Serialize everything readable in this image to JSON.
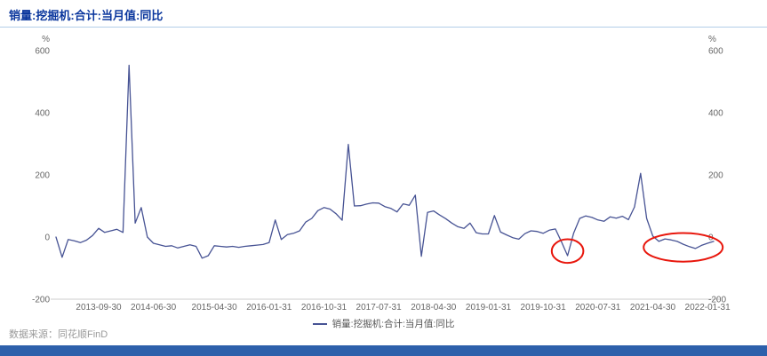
{
  "header": {
    "title": "销量:挖掘机:合计:当月值:同比"
  },
  "legend": {
    "label": "销量:挖掘机:合计:当月值:同比"
  },
  "footer": {
    "source_label": "数据来源：同花顺FinD"
  },
  "colors": {
    "title_text": "#0a369d",
    "divider": "#b3cde8",
    "series_line": "#475394",
    "axis_text": "#666666",
    "axis_line": "#cccccc",
    "annotation": "#e8160c",
    "legend_text": "#555555",
    "source_text": "#999999",
    "bottom_bar": "#2d60ab"
  },
  "chart_data": {
    "type": "line",
    "title": "销量:挖掘机:合计:当月值:同比",
    "y_unit": "%",
    "y_ticks": [
      600,
      400,
      200,
      0,
      -200
    ],
    "ylim": [
      -200,
      650
    ],
    "grid": false,
    "legend_position": "bottom",
    "x_ticks": [
      "2013-09-30",
      "2014-06-30",
      "2015-04-30",
      "2016-01-31",
      "2016-10-31",
      "2017-07-31",
      "2018-04-30",
      "2019-01-31",
      "2019-10-31",
      "2020-07-31",
      "2021-04-30",
      "2022-01-31"
    ],
    "series": [
      {
        "name": "销量:挖掘机:合计:当月值:同比",
        "x": [
          "2013-02",
          "2013-03",
          "2013-04",
          "2013-05",
          "2013-06",
          "2013-07",
          "2013-08",
          "2013-09",
          "2013-10",
          "2013-11",
          "2013-12",
          "2014-01",
          "2014-02",
          "2014-03",
          "2014-04",
          "2014-05",
          "2014-06",
          "2014-07",
          "2014-08",
          "2014-09",
          "2014-10",
          "2014-11",
          "2014-12",
          "2015-01",
          "2015-02",
          "2015-03",
          "2015-04",
          "2015-05",
          "2015-06",
          "2015-07",
          "2015-08",
          "2015-09",
          "2015-10",
          "2015-11",
          "2015-12",
          "2016-01",
          "2016-02",
          "2016-03",
          "2016-04",
          "2016-05",
          "2016-06",
          "2016-07",
          "2016-08",
          "2016-09",
          "2016-10",
          "2016-11",
          "2016-12",
          "2017-01",
          "2017-02",
          "2017-03",
          "2017-04",
          "2017-05",
          "2017-06",
          "2017-07",
          "2017-08",
          "2017-09",
          "2017-10",
          "2017-11",
          "2017-12",
          "2018-01",
          "2018-02",
          "2018-03",
          "2018-04",
          "2018-05",
          "2018-06",
          "2018-07",
          "2018-08",
          "2018-09",
          "2018-10",
          "2018-11",
          "2018-12",
          "2019-01",
          "2019-02",
          "2019-03",
          "2019-04",
          "2019-05",
          "2019-06",
          "2019-07",
          "2019-08",
          "2019-09",
          "2019-10",
          "2019-11",
          "2019-12",
          "2020-01",
          "2020-02",
          "2020-03",
          "2020-04",
          "2020-05",
          "2020-06",
          "2020-07",
          "2020-08",
          "2020-09",
          "2020-10",
          "2020-11",
          "2020-12",
          "2021-01",
          "2021-02",
          "2021-03",
          "2021-04",
          "2021-05",
          "2021-06",
          "2021-07",
          "2021-08",
          "2021-09",
          "2021-10",
          "2021-11",
          "2021-12",
          "2022-01",
          "2022-02"
        ],
        "values": [
          0,
          -65,
          -8,
          -12,
          -18,
          -10,
          5,
          28,
          15,
          20,
          25,
          15,
          553,
          45,
          95,
          0,
          -20,
          -25,
          -30,
          -28,
          -35,
          -30,
          -25,
          -30,
          -68,
          -60,
          -28,
          -30,
          -32,
          -30,
          -33,
          -30,
          -28,
          -26,
          -24,
          -18,
          55,
          -8,
          8,
          12,
          20,
          48,
          60,
          85,
          95,
          90,
          75,
          54,
          298,
          100,
          101,
          106,
          110,
          109,
          98,
          92,
          81,
          107,
          102,
          135,
          -62,
          79,
          84,
          71,
          59,
          45,
          33,
          28,
          45,
          14,
          10,
          10,
          69,
          16,
          7,
          -2,
          -7,
          11,
          20,
          18,
          12,
          22,
          26,
          -15,
          -60,
          12,
          60,
          68,
          63,
          55,
          51,
          65,
          61,
          67,
          56,
          97,
          205,
          60,
          3,
          -14,
          -6,
          -9,
          -14,
          -23,
          -31,
          -37,
          -27,
          -20,
          -14
        ]
      }
    ],
    "annotations": [
      {
        "shape": "ellipse",
        "center_month": "2020-02",
        "value_center": -45,
        "month_radius": 2.6,
        "value_radius": 38
      },
      {
        "shape": "ellipse",
        "center_month": "2021-09",
        "value_center": -33,
        "month_radius": 6.5,
        "value_radius": 46
      }
    ]
  }
}
